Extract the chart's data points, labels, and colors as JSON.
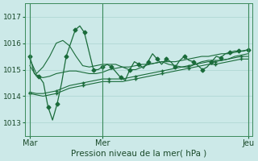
{
  "title": "Pression niveau de la mer( hPa )",
  "bg_color": "#cce9e8",
  "grid_color": "#aad4d0",
  "line_color": "#1a6b3a",
  "ylim": [
    1012.5,
    1017.5
  ],
  "xlim": [
    0,
    50
  ],
  "yticks": [
    1013,
    1014,
    1015,
    1016,
    1017
  ],
  "xtick_labels": [
    "Mar",
    "Mer",
    "Jeu"
  ],
  "xtick_pos": [
    1,
    17,
    49
  ],
  "vline_pos": [
    1,
    17,
    49
  ],
  "marker_size": 2.5,
  "series": {
    "volatile": [
      1015.5,
      1014.85,
      1014.75,
      1014.5,
      1013.6,
      1013.1,
      1013.7,
      1014.5,
      1015.5,
      1016.0,
      1016.5,
      1016.65,
      1016.4,
      1015.7,
      1015.0,
      1015.0,
      1015.1,
      1015.2,
      1015.1,
      1014.9,
      1014.7,
      1014.6,
      1015.0,
      1015.3,
      1015.2,
      1015.05,
      1015.3,
      1015.6,
      1015.4,
      1015.2,
      1015.4,
      1015.3,
      1015.1,
      1015.35,
      1015.5,
      1015.35,
      1015.3,
      1015.15,
      1015.0,
      1015.1,
      1015.3,
      1015.5,
      1015.45,
      1015.6,
      1015.65,
      1015.7,
      1015.7,
      1015.7,
      1015.75
    ],
    "upper_fan": [
      1015.4,
      1014.85,
      1015.1,
      1015.5,
      1016.0,
      1016.1,
      1015.9,
      1015.5,
      1015.15,
      1015.1,
      1015.15,
      1015.2,
      1015.2,
      1015.2,
      1015.1,
      1015.0,
      1015.0,
      1015.1,
      1015.2,
      1015.25,
      1015.3,
      1015.2,
      1015.15,
      1015.1,
      1015.1,
      1015.2,
      1015.3,
      1015.35,
      1015.35,
      1015.35,
      1015.4,
      1015.5,
      1015.55,
      1015.6
    ],
    "mid_fan1": [
      1015.15,
      1014.75,
      1014.7,
      1014.75,
      1014.85,
      1014.9,
      1014.95,
      1014.95,
      1014.9,
      1014.85,
      1014.85,
      1014.9,
      1015.0,
      1015.05,
      1015.1,
      1015.1,
      1015.15,
      1015.2,
      1015.2,
      1015.25,
      1015.3,
      1015.3,
      1015.3,
      1015.35,
      1015.4,
      1015.45,
      1015.5,
      1015.5,
      1015.55,
      1015.6,
      1015.6,
      1015.65,
      1015.7,
      1015.75
    ],
    "lower_fan1": [
      1014.15,
      1014.1,
      1014.1,
      1014.15,
      1014.2,
      1014.3,
      1014.4,
      1014.45,
      1014.5,
      1014.55,
      1014.6,
      1014.65,
      1014.65,
      1014.65,
      1014.65,
      1014.7,
      1014.75,
      1014.8,
      1014.85,
      1014.9,
      1014.95,
      1015.0,
      1015.05,
      1015.1,
      1015.15,
      1015.2,
      1015.25,
      1015.3,
      1015.3,
      1015.35,
      1015.4,
      1015.45,
      1015.5,
      1015.5
    ],
    "lower_fan2": [
      1014.1,
      1014.05,
      1014.0,
      1014.05,
      1014.1,
      1014.2,
      1014.3,
      1014.35,
      1014.4,
      1014.45,
      1014.5,
      1014.55,
      1014.55,
      1014.55,
      1014.55,
      1014.6,
      1014.65,
      1014.7,
      1014.75,
      1014.8,
      1014.85,
      1014.9,
      1014.95,
      1015.0,
      1015.05,
      1015.1,
      1015.15,
      1015.2,
      1015.2,
      1015.25,
      1015.3,
      1015.35,
      1015.4,
      1015.4
    ]
  }
}
